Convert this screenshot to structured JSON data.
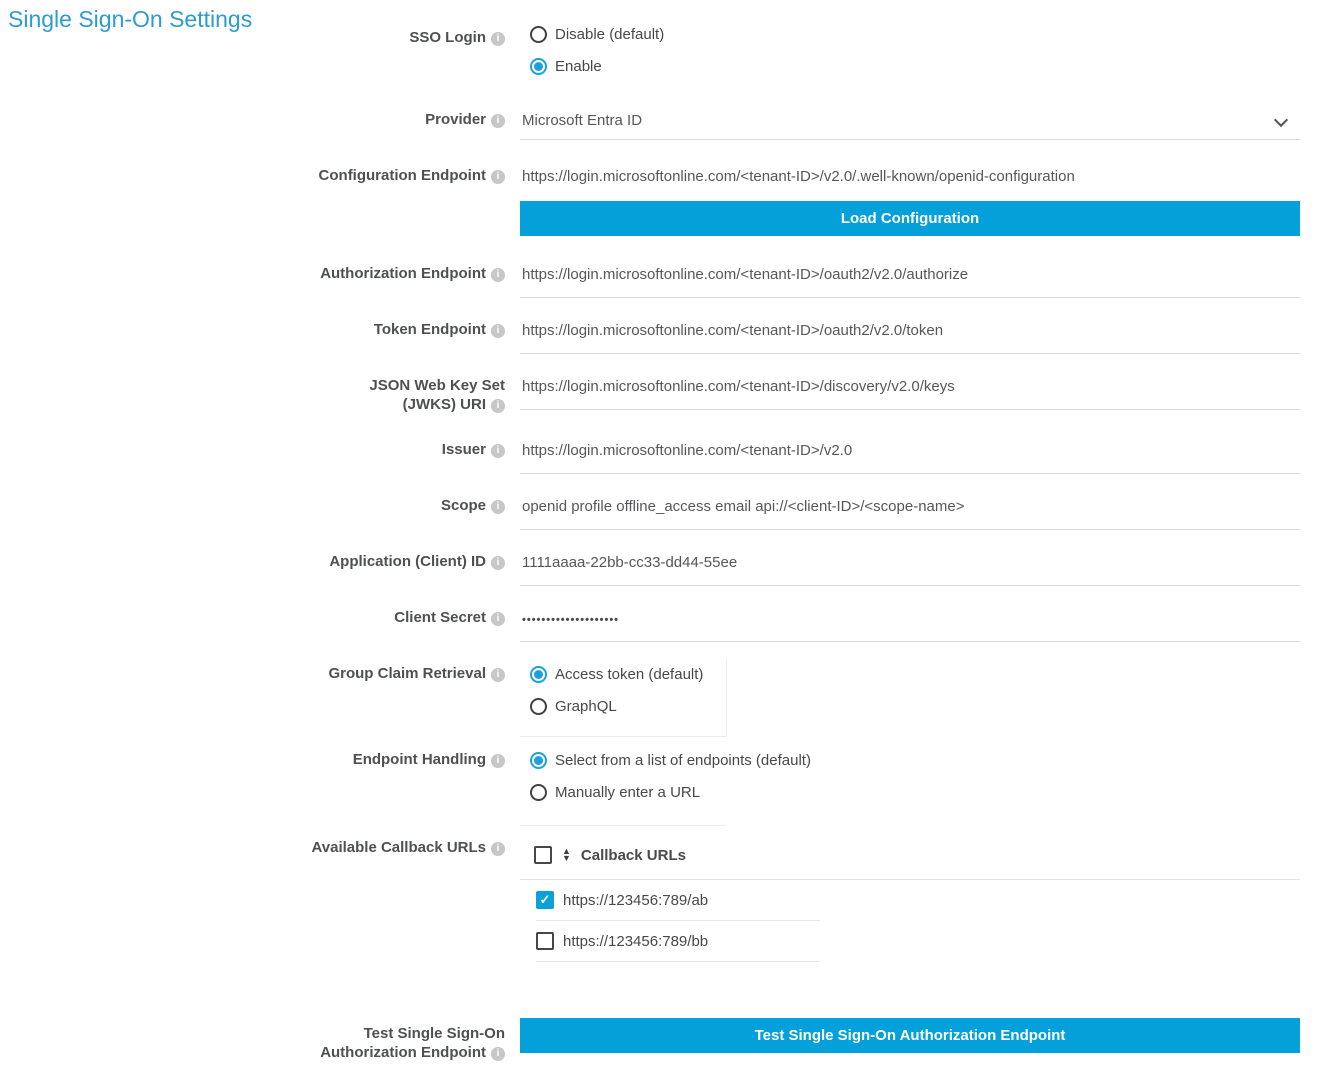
{
  "page_title": "Single Sign-On Settings",
  "colors": {
    "accent": "#04a0da",
    "title": "#2d9cd1"
  },
  "icons": {
    "info": "i",
    "check": "✓",
    "sort_up": "▲",
    "sort_down": "▼",
    "chevron_down": "v"
  },
  "form": {
    "sso_login": {
      "label": "SSO Login",
      "options": [
        "Disable (default)",
        "Enable"
      ],
      "selected": "Enable"
    },
    "provider": {
      "label": "Provider",
      "value": "Microsoft Entra ID"
    },
    "configuration_endpoint": {
      "label": "Configuration Endpoint",
      "value": "https://login.microsoftonline.com/<tenant-ID>/v2.0/.well-known/openid-configuration",
      "button_label": "Load Configuration"
    },
    "authorization_endpoint": {
      "label": "Authorization Endpoint",
      "value": "https://login.microsoftonline.com/<tenant-ID>/oauth2/v2.0/authorize"
    },
    "token_endpoint": {
      "label": "Token Endpoint",
      "value": "https://login.microsoftonline.com/<tenant-ID>/oauth2/v2.0/token"
    },
    "jwks_uri": {
      "label": "JSON Web Key Set (JWKS) URI",
      "value": "https://login.microsoftonline.com/<tenant-ID>/discovery/v2.0/keys"
    },
    "issuer": {
      "label": "Issuer",
      "value": "https://login.microsoftonline.com/<tenant-ID>/v2.0"
    },
    "scope": {
      "label": "Scope",
      "value": "openid profile offline_access email api://<client-ID>/<scope-name>"
    },
    "client_id": {
      "label": "Application (Client) ID",
      "value": "1111aaaa-22bb-cc33-dd44-55ee"
    },
    "client_secret": {
      "label": "Client Secret",
      "value_masked": "••••••••••••••••••••"
    },
    "group_claim_retrieval": {
      "label": "Group Claim Retrieval",
      "options": [
        "Access token (default)",
        "GraphQL"
      ],
      "selected": "Access token (default)"
    },
    "endpoint_handling": {
      "label": "Endpoint Handling",
      "options": [
        "Select from a list of endpoints (default)",
        "Manually enter a URL"
      ],
      "selected": "Select from a list of endpoints (default)"
    },
    "available_callback_urls": {
      "label": "Available Callback URLs",
      "column_header": "Callback URLs",
      "rows": [
        {
          "url": "https://123456:789/ab",
          "checked": true
        },
        {
          "url": "https://123456:789/bb",
          "checked": false
        }
      ]
    },
    "test_sso": {
      "label": "Test Single Sign-On Authorization Endpoint",
      "button_label": "Test Single Sign-On Authorization Endpoint"
    }
  }
}
